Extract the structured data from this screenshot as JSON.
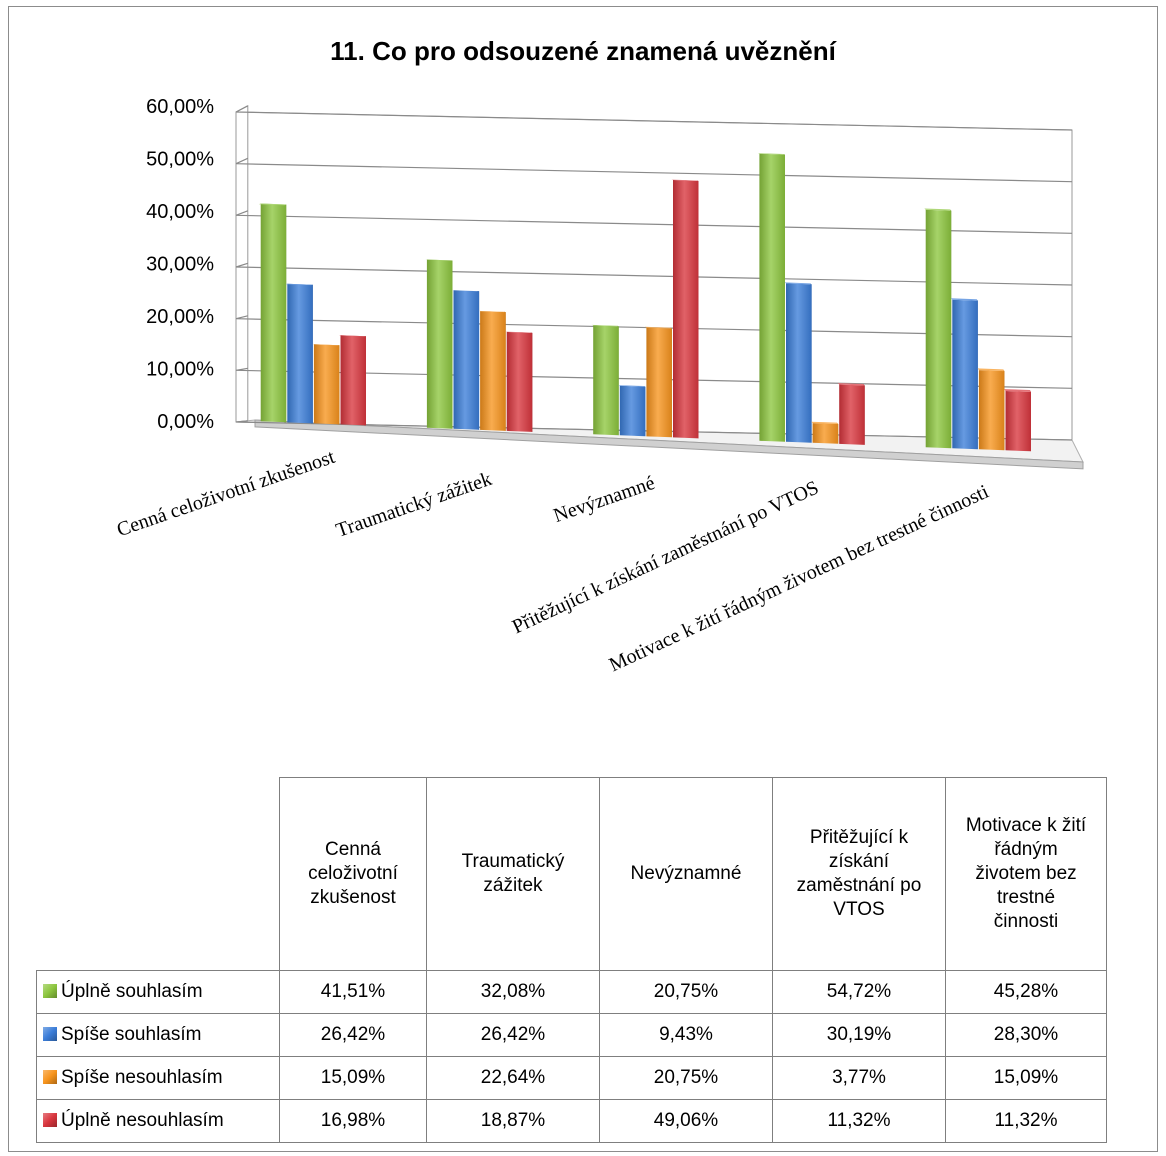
{
  "chart_data": {
    "type": "bar",
    "title": "11. Co pro odsouzené znamená uvěznění",
    "categories": [
      "Cenná celoživotní zkušenost",
      "Traumatický zážitek",
      "Nevýznamné",
      "Přitěžující k získání zaměstnání po VTOS",
      "Motivace k žití řádným životem bez trestné činnosti"
    ],
    "table_headers": [
      [
        "Cenná",
        "celoživotní",
        "zkušenost"
      ],
      [
        "Traumatický",
        "zážitek"
      ],
      [
        "Nevýznamné"
      ],
      [
        "Přitěžující k",
        "získání",
        "zaměstnání po",
        "VTOS"
      ],
      [
        "Motivace k žití",
        "řádným",
        "životem bez",
        "trestné",
        "činnosti"
      ]
    ],
    "series": [
      {
        "name": "Úplně souhlasím",
        "color": "#8dc63f",
        "values": [
          41.51,
          32.08,
          20.75,
          54.72,
          45.28
        ],
        "labels": [
          "41,51%",
          "32,08%",
          "20,75%",
          "54,72%",
          "45,28%"
        ]
      },
      {
        "name": "Spíše souhlasím",
        "color": "#3b7dd8",
        "values": [
          26.42,
          26.42,
          9.43,
          30.19,
          28.3
        ],
        "labels": [
          "26,42%",
          "26,42%",
          "9,43%",
          "30,19%",
          "28,30%"
        ]
      },
      {
        "name": "Spíše nesouhlasím",
        "color": "#f7941d",
        "values": [
          15.09,
          22.64,
          20.75,
          3.77,
          15.09
        ],
        "labels": [
          "15,09%",
          "22,64%",
          "20,75%",
          "3,77%",
          "15,09%"
        ]
      },
      {
        "name": "Úplně nesouhlasím",
        "color": "#d9363e",
        "values": [
          16.98,
          18.87,
          49.06,
          11.32,
          11.32
        ],
        "labels": [
          "16,98%",
          "18,87%",
          "49,06%",
          "11,32%",
          "11,32%"
        ]
      }
    ],
    "yaxis": {
      "ticks": [
        "0,00%",
        "10,00%",
        "20,00%",
        "30,00%",
        "40,00%",
        "50,00%",
        "60,00%"
      ],
      "ylim": [
        0,
        60
      ],
      "unit": "%"
    },
    "grid": true,
    "legend": "table-left"
  }
}
